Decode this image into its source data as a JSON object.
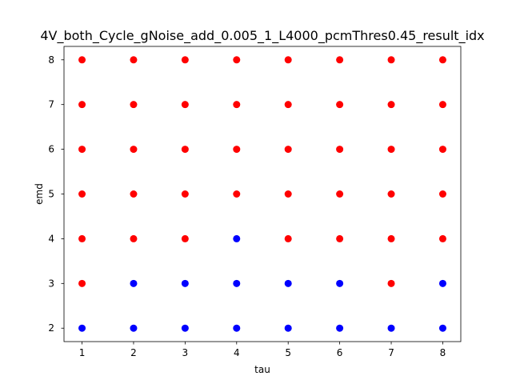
{
  "chart_data": {
    "type": "scatter",
    "title": "4V_both_Cycle_gNoise_add_0.005_1_L4000_pcmThres0.45_result_idx",
    "xlabel": "tau",
    "ylabel": "emd",
    "xlim": [
      0.65,
      8.35
    ],
    "ylim": [
      1.7,
      8.3
    ],
    "xticks": [
      1,
      2,
      3,
      4,
      5,
      6,
      7,
      8
    ],
    "yticks": [
      2,
      3,
      4,
      5,
      6,
      7,
      8
    ],
    "grid": false,
    "colors": {
      "red": "#ff0000",
      "blue": "#0000ff"
    },
    "points": [
      {
        "x": 1,
        "y": 2,
        "color": "blue"
      },
      {
        "x": 2,
        "y": 2,
        "color": "blue"
      },
      {
        "x": 3,
        "y": 2,
        "color": "blue"
      },
      {
        "x": 4,
        "y": 2,
        "color": "blue"
      },
      {
        "x": 5,
        "y": 2,
        "color": "blue"
      },
      {
        "x": 6,
        "y": 2,
        "color": "blue"
      },
      {
        "x": 7,
        "y": 2,
        "color": "blue"
      },
      {
        "x": 8,
        "y": 2,
        "color": "blue"
      },
      {
        "x": 1,
        "y": 3,
        "color": "red"
      },
      {
        "x": 2,
        "y": 3,
        "color": "blue"
      },
      {
        "x": 3,
        "y": 3,
        "color": "blue"
      },
      {
        "x": 4,
        "y": 3,
        "color": "blue"
      },
      {
        "x": 5,
        "y": 3,
        "color": "blue"
      },
      {
        "x": 6,
        "y": 3,
        "color": "blue"
      },
      {
        "x": 7,
        "y": 3,
        "color": "red"
      },
      {
        "x": 8,
        "y": 3,
        "color": "blue"
      },
      {
        "x": 1,
        "y": 4,
        "color": "red"
      },
      {
        "x": 2,
        "y": 4,
        "color": "red"
      },
      {
        "x": 3,
        "y": 4,
        "color": "red"
      },
      {
        "x": 4,
        "y": 4,
        "color": "blue"
      },
      {
        "x": 5,
        "y": 4,
        "color": "red"
      },
      {
        "x": 6,
        "y": 4,
        "color": "red"
      },
      {
        "x": 7,
        "y": 4,
        "color": "red"
      },
      {
        "x": 8,
        "y": 4,
        "color": "red"
      },
      {
        "x": 1,
        "y": 5,
        "color": "red"
      },
      {
        "x": 2,
        "y": 5,
        "color": "red"
      },
      {
        "x": 3,
        "y": 5,
        "color": "red"
      },
      {
        "x": 4,
        "y": 5,
        "color": "red"
      },
      {
        "x": 5,
        "y": 5,
        "color": "red"
      },
      {
        "x": 6,
        "y": 5,
        "color": "red"
      },
      {
        "x": 7,
        "y": 5,
        "color": "red"
      },
      {
        "x": 8,
        "y": 5,
        "color": "red"
      },
      {
        "x": 1,
        "y": 6,
        "color": "red"
      },
      {
        "x": 2,
        "y": 6,
        "color": "red"
      },
      {
        "x": 3,
        "y": 6,
        "color": "red"
      },
      {
        "x": 4,
        "y": 6,
        "color": "red"
      },
      {
        "x": 5,
        "y": 6,
        "color": "red"
      },
      {
        "x": 6,
        "y": 6,
        "color": "red"
      },
      {
        "x": 7,
        "y": 6,
        "color": "red"
      },
      {
        "x": 8,
        "y": 6,
        "color": "red"
      },
      {
        "x": 1,
        "y": 7,
        "color": "red"
      },
      {
        "x": 2,
        "y": 7,
        "color": "red"
      },
      {
        "x": 3,
        "y": 7,
        "color": "red"
      },
      {
        "x": 4,
        "y": 7,
        "color": "red"
      },
      {
        "x": 5,
        "y": 7,
        "color": "red"
      },
      {
        "x": 6,
        "y": 7,
        "color": "red"
      },
      {
        "x": 7,
        "y": 7,
        "color": "red"
      },
      {
        "x": 8,
        "y": 7,
        "color": "red"
      },
      {
        "x": 1,
        "y": 8,
        "color": "red"
      },
      {
        "x": 2,
        "y": 8,
        "color": "red"
      },
      {
        "x": 3,
        "y": 8,
        "color": "red"
      },
      {
        "x": 4,
        "y": 8,
        "color": "red"
      },
      {
        "x": 5,
        "y": 8,
        "color": "red"
      },
      {
        "x": 6,
        "y": 8,
        "color": "red"
      },
      {
        "x": 7,
        "y": 8,
        "color": "red"
      },
      {
        "x": 8,
        "y": 8,
        "color": "red"
      }
    ]
  }
}
